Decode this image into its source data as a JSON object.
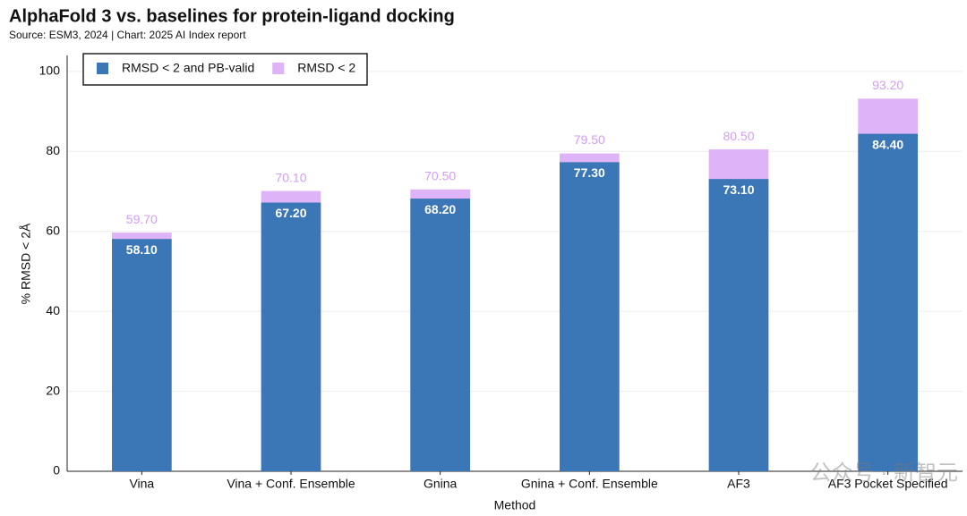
{
  "chart_data": {
    "type": "overlay_bar",
    "title": "AlphaFold 3 vs. baselines for protein-ligand docking",
    "subtitle": "Source: ESM3, 2024 | Chart: 2025 AI Index report",
    "x_label": "Method",
    "y_label": "% RMSD < 2Å",
    "categories": [
      "Vina",
      "Vina + Conf. Ensemble",
      "Gnina",
      "Gnina + Conf. Ensemble",
      "AF3",
      "AF3 Pocket Specified"
    ],
    "series": [
      {
        "name": "RMSD < 2 and PB-valid",
        "color": "#3b76b6",
        "values": [
          58.1,
          67.2,
          68.2,
          77.3,
          73.1,
          84.4
        ],
        "value_labels": [
          "58.10",
          "67.20",
          "68.20",
          "77.30",
          "73.10",
          "84.40"
        ]
      },
      {
        "name": "RMSD < 2",
        "color": "#dfb3f7",
        "values": [
          59.7,
          70.1,
          70.5,
          79.5,
          80.5,
          93.2
        ],
        "value_labels": [
          "59.70",
          "70.10",
          "70.50",
          "79.50",
          "80.50",
          "93.20"
        ]
      }
    ],
    "ylim": [
      0,
      104
    ],
    "yticks": [
      0,
      20,
      40,
      60,
      80,
      100
    ],
    "grid": true,
    "legend": "top-left",
    "watermark": "公众号 · 新智元"
  }
}
